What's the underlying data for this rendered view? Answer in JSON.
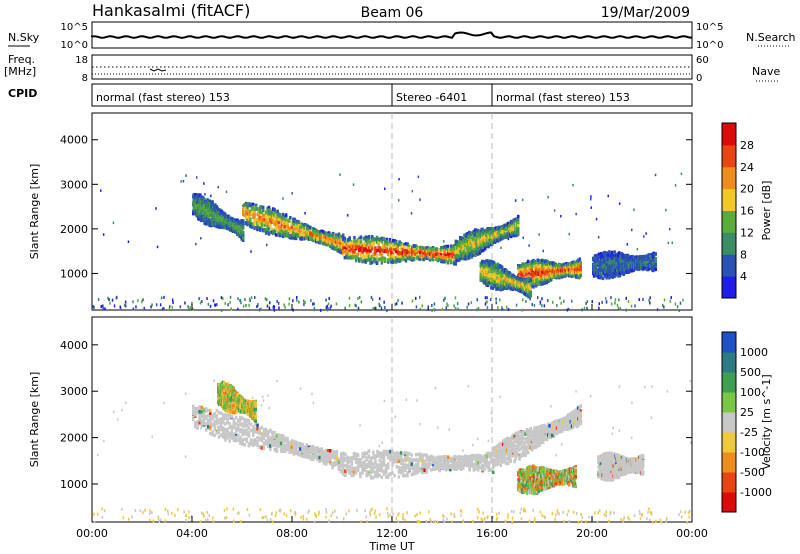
{
  "header": {
    "station": "Hankasalmi (fitACF)",
    "beam": "Beam 06",
    "date": "19/Mar/2009"
  },
  "status": {
    "nsky_label": "N.Sky",
    "nsky_ticks": [
      "10^5",
      "10^0"
    ],
    "nsearch_label": "N.Search",
    "nsearch_ticks": [
      "10^5",
      "10^0"
    ],
    "freq_label": "Freq.",
    "freq_unit": "[MHz]",
    "freq_ticks": [
      "18",
      "8"
    ],
    "nave_label": "Nave",
    "nave_ticks": [
      "60",
      "0"
    ],
    "cpid_label": "CPID",
    "cpid_segments": [
      {
        "label": "normal (fast stereo) 153",
        "start_hour": 0,
        "end_hour": 12
      },
      {
        "label": "Stereo -6401",
        "start_hour": 12,
        "end_hour": 16
      },
      {
        "label": "normal (fast stereo) 153",
        "start_hour": 16,
        "end_hour": 24
      }
    ]
  },
  "axes": {
    "x_ticks": [
      "00:00",
      "04:00",
      "08:00",
      "12:00",
      "16:00",
      "20:00",
      "00:00"
    ],
    "x_label": "Time UT",
    "y_label": "Slant Range [km]",
    "y_ticks": [
      "1000",
      "2000",
      "3000",
      "4000"
    ]
  },
  "chart_data": [
    {
      "type": "heatmap",
      "name": "power-panel",
      "xlabel": "Time UT",
      "ylabel": "Slant Range [km]",
      "xlim": [
        0,
        24
      ],
      "ylim": [
        180,
        4600
      ],
      "colorbar": {
        "label": "Power [dB]",
        "ticks": [
          "4",
          "8",
          "12",
          "16",
          "20",
          "24",
          "28"
        ],
        "colors": [
          "#1e1ee6",
          "#2a52b4",
          "#3c8c64",
          "#5aaa3c",
          "#f0c828",
          "#f08c1e",
          "#e64614",
          "#dc0a0a"
        ]
      },
      "echoes": [
        {
          "t0": 6.0,
          "r0": 2400,
          "t1": 10.0,
          "r1": 1700,
          "level": 0.7
        },
        {
          "t0": 10.0,
          "r0": 1600,
          "t1": 14.5,
          "r1": 1450,
          "level": 0.9
        },
        {
          "t0": 14.5,
          "r0": 1550,
          "t1": 17.0,
          "r1": 2100,
          "level": 0.5
        },
        {
          "t0": 4.0,
          "r0": 2600,
          "t1": 6.0,
          "r1": 2000,
          "level": 0.3
        },
        {
          "t0": 17.0,
          "r0": 1000,
          "t1": 19.5,
          "r1": 1150,
          "level": 0.85
        },
        {
          "t0": 15.5,
          "r0": 1100,
          "t1": 17.5,
          "r1": 700,
          "level": 0.55
        },
        {
          "t0": 20.0,
          "r0": 1200,
          "t1": 22.5,
          "r1": 1300,
          "level": 0.1
        }
      ]
    },
    {
      "type": "heatmap",
      "name": "velocity-panel",
      "xlabel": "Time UT",
      "ylabel": "Slant Range [km]",
      "xlim": [
        0,
        24
      ],
      "ylim": [
        180,
        4600
      ],
      "colorbar": {
        "label": "Velocity [m s^-1]",
        "ticks": [
          "1000",
          "500",
          "100",
          "25",
          "-25",
          "-100",
          "-500",
          "-1000"
        ],
        "colors": [
          "#1e50c8",
          "#2e7a82",
          "#3ca050",
          "#78c846",
          "#c8c8c8",
          "#f0c83c",
          "#f08c1e",
          "#e64614",
          "#dc0a0a"
        ]
      },
      "echoes": [
        {
          "t0": 4.0,
          "r0": 2500,
          "t1": 10.0,
          "r1": 1500,
          "level": "ground"
        },
        {
          "t0": 10.0,
          "r0": 1450,
          "t1": 16.0,
          "r1": 1500,
          "level": "ground"
        },
        {
          "t0": 16.0,
          "r0": 1600,
          "t1": 19.5,
          "r1": 2500,
          "level": "ground"
        },
        {
          "t0": 5.0,
          "r0": 3000,
          "t1": 6.5,
          "r1": 2600,
          "level": "orange"
        },
        {
          "t0": 17.0,
          "r0": 1100,
          "t1": 19.3,
          "r1": 1200,
          "level": "mixed"
        },
        {
          "t0": 20.2,
          "r0": 1400,
          "t1": 22.0,
          "r1": 1450,
          "level": "ground"
        }
      ]
    }
  ]
}
